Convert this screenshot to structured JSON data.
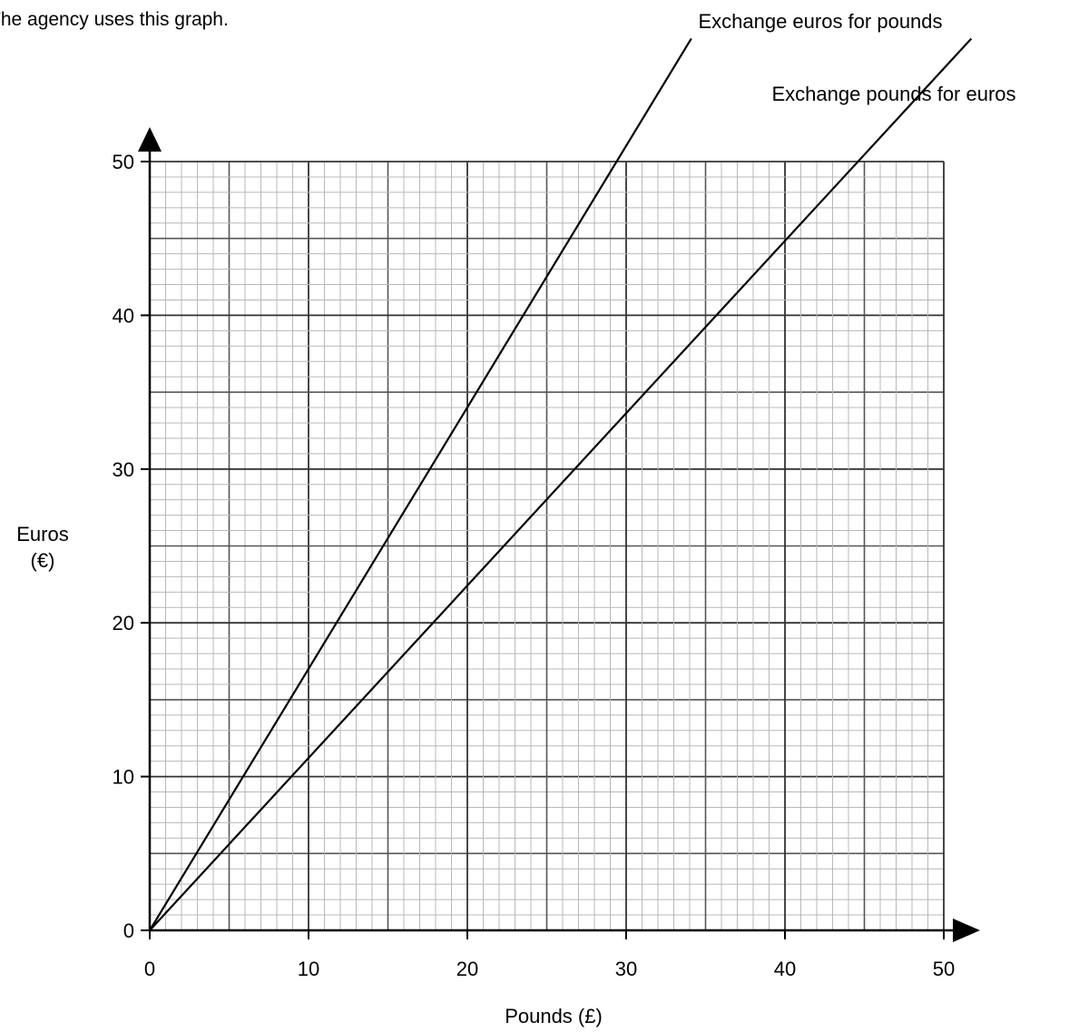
{
  "intro_text": "The agency uses this graph.",
  "chart_data": {
    "type": "line",
    "xlabel": "Pounds (£)",
    "ylabel_line1": "Euros",
    "ylabel_line2": "(€)",
    "xlim": [
      0,
      50
    ],
    "ylim": [
      0,
      50
    ],
    "xticks": [
      0,
      10,
      20,
      30,
      40,
      50
    ],
    "yticks": [
      0,
      10,
      20,
      30,
      40,
      50
    ],
    "grid": true,
    "series": [
      {
        "name": "Exchange euros for pounds",
        "x": [
          0,
          29.4
        ],
        "y": [
          0,
          50
        ],
        "color": "#000000"
      },
      {
        "name": "Exchange pounds for euros",
        "x": [
          0,
          44.6
        ],
        "y": [
          0,
          50
        ],
        "color": "#000000"
      }
    ]
  }
}
